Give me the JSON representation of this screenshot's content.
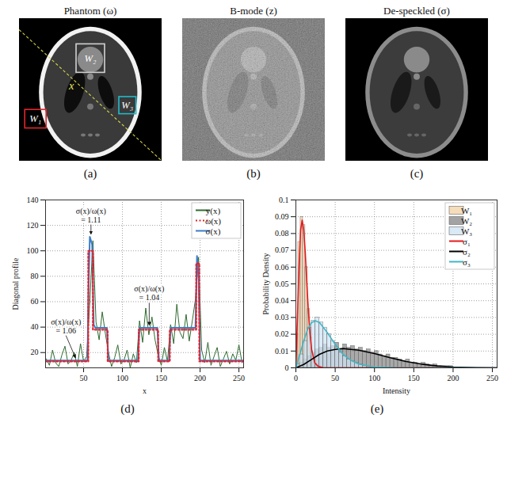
{
  "images": [
    {
      "label": "(a)",
      "title": "Phantom (ω)",
      "profile_label": "x",
      "windows": [
        {
          "label": "W₁",
          "color": "#e0262b"
        },
        {
          "label": "W₂",
          "color": "#d0d0d0"
        },
        {
          "label": "W₃",
          "color": "#22b8c8"
        }
      ]
    },
    {
      "label": "(b)",
      "title": "B-mode (z)"
    },
    {
      "label": "(c)",
      "title": "De-speckled (σ)"
    }
  ],
  "chart_data": [
    {
      "type": "line",
      "panel_label": "(d)",
      "x_label": "x",
      "y_label": "Diagonal profile",
      "xlim": [
        1,
        256
      ],
      "xticks": [
        50,
        100,
        150,
        200,
        250
      ],
      "ylim": [
        8,
        140
      ],
      "yticks": [
        20,
        40,
        60,
        80,
        100,
        120,
        140
      ],
      "grid": true,
      "legend": "top-right",
      "series": [
        {
          "name": "y(x)",
          "color": "#2f6b2f",
          "line_style": "solid",
          "x": [
            2,
            6,
            10,
            14,
            18,
            22,
            26,
            30,
            34,
            38,
            42,
            46,
            50,
            54,
            58,
            62,
            66,
            70,
            74,
            78,
            82,
            86,
            90,
            94,
            98,
            102,
            106,
            110,
            114,
            118,
            122,
            126,
            130,
            134,
            138,
            142,
            146,
            150,
            154,
            158,
            162,
            166,
            170,
            174,
            178,
            182,
            186,
            190,
            194,
            198,
            202,
            206,
            210,
            214,
            218,
            222,
            226,
            230,
            234,
            238,
            242,
            246,
            250,
            254
          ],
          "values": [
            15,
            10,
            22,
            12,
            9,
            18,
            25,
            11,
            14,
            20,
            9,
            27,
            13,
            17,
            60,
            108,
            44,
            30,
            52,
            35,
            20,
            9,
            16,
            26,
            11,
            14,
            22,
            8,
            19,
            12,
            45,
            28,
            55,
            34,
            48,
            30,
            18,
            10,
            24,
            13,
            42,
            27,
            58,
            36,
            31,
            50,
            29,
            45,
            62,
            95,
            22,
            12,
            28,
            10,
            17,
            24,
            9,
            15,
            21,
            11,
            19,
            14,
            26,
            12
          ]
        },
        {
          "name": "ω(x)",
          "color": "#e8202a",
          "line_style": "dotted",
          "x": [
            1,
            56,
            56,
            62,
            62,
            81,
            81,
            121,
            121,
            146,
            146,
            161,
            161,
            195,
            195,
            199,
            199,
            256
          ],
          "values": [
            13,
            13,
            100,
            100,
            38,
            38,
            13,
            13,
            38,
            38,
            13,
            13,
            38,
            38,
            90,
            90,
            13,
            13
          ]
        },
        {
          "name": "σ(x)",
          "color": "#3a7dc9",
          "line_style": "solid",
          "x": [
            1,
            55,
            56,
            58,
            61,
            63,
            65,
            80,
            82,
            120,
            122,
            145,
            147,
            160,
            162,
            194,
            196,
            198,
            200,
            256
          ],
          "values": [
            13.8,
            13.8,
            60,
            111,
            105,
            42,
            39.5,
            39.5,
            13.8,
            13.8,
            39.5,
            39.5,
            13.8,
            13.8,
            39.5,
            39.5,
            96,
            80,
            13.8,
            13.8
          ]
        }
      ],
      "annotations": [
        {
          "text": "σ(x)/ω(x) = 1.11",
          "x": 60,
          "y": 111
        },
        {
          "text": "σ(x)/ω(x) = 1.06",
          "x": 40,
          "y": 13.8
        },
        {
          "text": "σ(x)/ω(x) = 1.04",
          "x": 135,
          "y": 39.5
        }
      ]
    },
    {
      "type": "histogram",
      "panel_label": "(e)",
      "x_label": "Intensity",
      "y_label": "Probability Density",
      "xlim": [
        0,
        256
      ],
      "xticks": [
        0,
        50,
        100,
        150,
        200,
        250
      ],
      "ylim": [
        0,
        0.1
      ],
      "yticks": [
        0,
        0.01,
        0.02,
        0.03,
        0.04,
        0.05,
        0.06,
        0.07,
        0.08,
        0.09,
        0.1
      ],
      "grid": true,
      "legend": "top-right",
      "series": [
        {
          "name": "W₁",
          "type": "histogram",
          "color": "#f3d3aa",
          "bins": [
            0,
            3,
            6,
            9,
            12,
            15,
            18,
            21,
            24,
            27,
            30
          ],
          "values": [
            0.02,
            0.075,
            0.09,
            0.085,
            0.06,
            0.035,
            0.018,
            0.008,
            0.004,
            0.002
          ]
        },
        {
          "name": "W₂",
          "type": "histogram",
          "color": "#8c8c8c",
          "bins": [
            0,
            5,
            10,
            15,
            20,
            25,
            30,
            35,
            40,
            45,
            50,
            55,
            60,
            65,
            70,
            75,
            80,
            85,
            90,
            95,
            100,
            105,
            110,
            115,
            120,
            125,
            130,
            135,
            140,
            145,
            150,
            155,
            160,
            165,
            170,
            175,
            180,
            185,
            190,
            195,
            200
          ],
          "values": [
            0.001,
            0.003,
            0.005,
            0.007,
            0.009,
            0.011,
            0.012,
            0.014,
            0.012,
            0.013,
            0.015,
            0.011,
            0.014,
            0.012,
            0.013,
            0.011,
            0.012,
            0.01,
            0.011,
            0.009,
            0.01,
            0.008,
            0.007,
            0.008,
            0.006,
            0.006,
            0.005,
            0.004,
            0.005,
            0.003,
            0.003,
            0.002,
            0.003,
            0.002,
            0.001,
            0.002,
            0.001,
            0.001,
            0.001,
            0.001
          ]
        },
        {
          "name": "W₃",
          "type": "histogram",
          "color": "#cfe3f3",
          "bins": [
            0,
            5,
            10,
            15,
            20,
            25,
            30,
            35,
            40,
            45,
            50,
            55,
            60,
            65,
            70,
            75,
            80,
            85,
            90
          ],
          "values": [
            0.002,
            0.008,
            0.016,
            0.024,
            0.028,
            0.03,
            0.027,
            0.024,
            0.02,
            0.016,
            0.012,
            0.009,
            0.007,
            0.005,
            0.004,
            0.003,
            0.002,
            0.001
          ]
        },
        {
          "name": "σ₁",
          "type": "line",
          "color": "#e41a1c",
          "x": [
            0,
            2,
            4,
            6,
            8,
            10,
            12,
            14,
            16,
            18,
            20,
            24,
            28,
            35,
            256
          ],
          "values": [
            0,
            0.03,
            0.06,
            0.082,
            0.088,
            0.082,
            0.068,
            0.05,
            0.033,
            0.02,
            0.011,
            0.003,
            0.001,
            0,
            0
          ]
        },
        {
          "name": "σ₂",
          "type": "line",
          "color": "#000000",
          "x": [
            0,
            10,
            20,
            30,
            40,
            50,
            60,
            70,
            80,
            100,
            120,
            140,
            160,
            180,
            200,
            230,
            256
          ],
          "values": [
            0,
            0.002,
            0.005,
            0.008,
            0.01,
            0.011,
            0.0115,
            0.011,
            0.0105,
            0.0085,
            0.006,
            0.0038,
            0.0022,
            0.0011,
            0.0005,
            0.0001,
            0
          ]
        },
        {
          "name": "σ₃",
          "type": "line",
          "color": "#41b6c4",
          "x": [
            0,
            5,
            10,
            15,
            20,
            25,
            30,
            35,
            40,
            50,
            60,
            70,
            80,
            100,
            130,
            256
          ],
          "values": [
            0,
            0.008,
            0.016,
            0.023,
            0.027,
            0.028,
            0.027,
            0.024,
            0.021,
            0.014,
            0.008,
            0.0045,
            0.0022,
            0.0005,
            0,
            0
          ]
        }
      ]
    }
  ]
}
